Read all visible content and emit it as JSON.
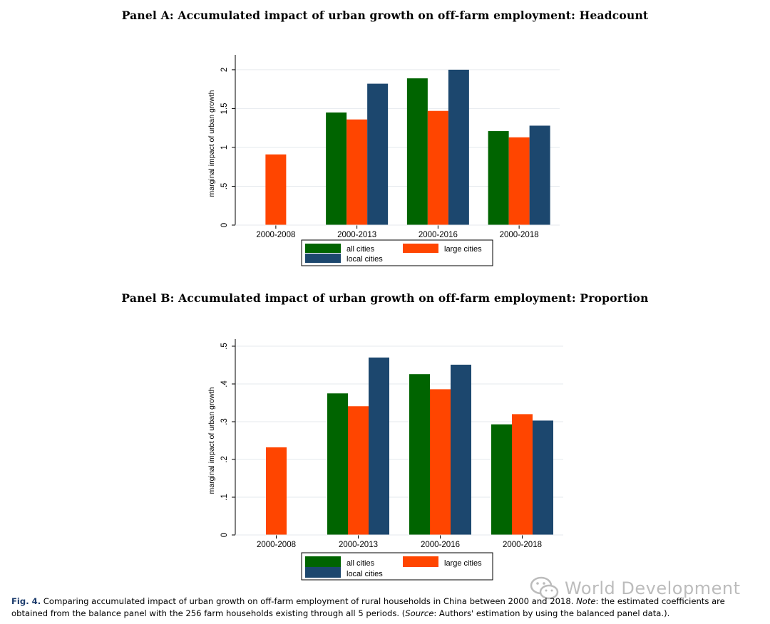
{
  "panel_a_title": "Panel A: Accumulated impact of urban growth on off-farm employment: Headcount",
  "panel_b_title": "Panel B: Accumulated impact of urban growth on off-farm employment: Proportion",
  "chart_data": [
    {
      "type": "bar",
      "title": "Panel A: Accumulated impact of urban growth on off-farm employment: Headcount",
      "ylabel": "marginal impact of urban growth",
      "xlabel": "",
      "categories": [
        "2000-2008",
        "2000-2013",
        "2000-2016",
        "2000-2018"
      ],
      "ylim": [
        0,
        2.1
      ],
      "yticks": [
        0,
        0.5,
        1,
        1.5,
        2
      ],
      "ytick_labels": [
        "0",
        ".5",
        "1",
        "1.5",
        "2"
      ],
      "grid": true,
      "legend_position": "bottom",
      "series": [
        {
          "name": "all cities",
          "color": "#006400",
          "values": [
            null,
            1.45,
            1.89,
            1.21
          ]
        },
        {
          "name": "large cities",
          "color": "#ff4500",
          "values": [
            0.91,
            1.36,
            1.47,
            1.13
          ]
        },
        {
          "name": "local cities",
          "color": "#1c476e",
          "values": [
            null,
            1.82,
            2.0,
            1.28
          ]
        }
      ]
    },
    {
      "type": "bar",
      "title": "Panel B: Accumulated impact of urban growth on off-farm employment: Proportion",
      "ylabel": "marginal impact of urban growth",
      "xlabel": "",
      "categories": [
        "2000-2008",
        "2000-2013",
        "2000-2016",
        "2000-2018"
      ],
      "ylim": [
        0,
        0.5
      ],
      "yticks": [
        0,
        0.1,
        0.2,
        0.3,
        0.4,
        0.5
      ],
      "ytick_labels": [
        "0",
        ".1",
        ".2",
        ".3",
        ".4",
        ".5"
      ],
      "grid": true,
      "legend_position": "bottom",
      "series": [
        {
          "name": "all cities",
          "color": "#006400",
          "values": [
            null,
            0.375,
            0.426,
            0.293
          ]
        },
        {
          "name": "large cities",
          "color": "#ff4500",
          "values": [
            0.232,
            0.341,
            0.386,
            0.32
          ]
        },
        {
          "name": "local cities",
          "color": "#1c476e",
          "values": [
            null,
            0.47,
            0.451,
            0.303
          ]
        }
      ]
    }
  ],
  "caption": {
    "fig_label": "Fig. 4.",
    "text_1": " Comparing accumulated impact of urban growth on off-farm employment of rural households in China between 2000 and 2018. ",
    "note_label": "Note",
    "text_2": ": the estimated coefficients are obtained from the balance panel with the 256 farm households existing through all 5 periods. (",
    "source_label": "Source",
    "text_3": ": Authors' estimation by using the balanced panel data.)."
  },
  "watermark": {
    "text": "World Development",
    "icon": "wechat-icon"
  }
}
